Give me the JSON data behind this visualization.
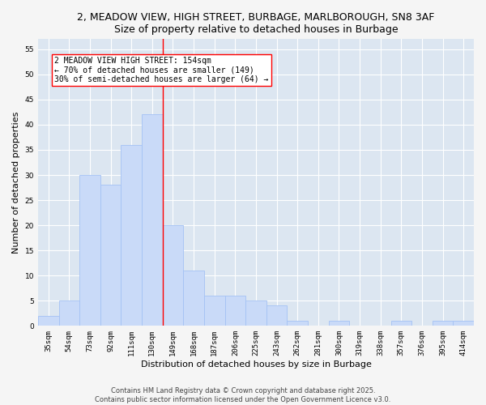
{
  "title_line1": "2, MEADOW VIEW, HIGH STREET, BURBAGE, MARLBOROUGH, SN8 3AF",
  "title_line2": "Size of property relative to detached houses in Burbage",
  "xlabel": "Distribution of detached houses by size in Burbage",
  "ylabel": "Number of detached properties",
  "categories": [
    "35sqm",
    "54sqm",
    "73sqm",
    "92sqm",
    "111sqm",
    "130sqm",
    "149sqm",
    "168sqm",
    "187sqm",
    "206sqm",
    "225sqm",
    "243sqm",
    "262sqm",
    "281sqm",
    "300sqm",
    "319sqm",
    "338sqm",
    "357sqm",
    "376sqm",
    "395sqm",
    "414sqm"
  ],
  "values": [
    2,
    5,
    30,
    28,
    36,
    42,
    20,
    11,
    6,
    6,
    5,
    4,
    1,
    0,
    1,
    0,
    0,
    1,
    0,
    1,
    1
  ],
  "bar_color": "#c9daf8",
  "bar_edge_color": "#a4c2f4",
  "bar_width": 1.0,
  "ylim": [
    0,
    57
  ],
  "yticks": [
    0,
    5,
    10,
    15,
    20,
    25,
    30,
    35,
    40,
    45,
    50,
    55
  ],
  "grid_color": "#ffffff",
  "bg_color": "#dce6f1",
  "fig_bg_color": "#f5f5f5",
  "red_line_x": 5.5,
  "annotation_text": "2 MEADOW VIEW HIGH STREET: 154sqm\n← 70% of detached houses are smaller (149)\n30% of semi-detached houses are larger (64) →",
  "footer_text": "Contains HM Land Registry data © Crown copyright and database right 2025.\nContains public sector information licensed under the Open Government Licence v3.0.",
  "title_fontsize": 9,
  "axis_label_fontsize": 8,
  "tick_fontsize": 6.5,
  "annotation_fontsize": 7,
  "footer_fontsize": 6
}
